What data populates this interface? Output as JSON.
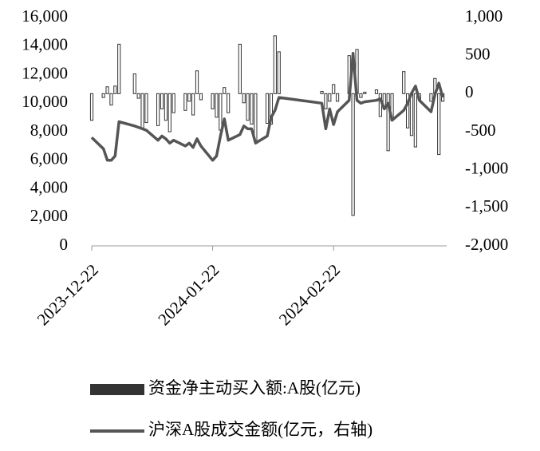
{
  "chart_data": {
    "type": "bar",
    "x": [
      "2023-12-22",
      "2023-12-25",
      "2023-12-26",
      "2023-12-27",
      "2023-12-28",
      "2023-12-29",
      "2024-01-02",
      "2024-01-03",
      "2024-01-04",
      "2024-01-05",
      "2024-01-08",
      "2024-01-09",
      "2024-01-10",
      "2024-01-11",
      "2024-01-12",
      "2024-01-15",
      "2024-01-16",
      "2024-01-17",
      "2024-01-18",
      "2024-01-19",
      "2024-01-22",
      "2024-01-23",
      "2024-01-24",
      "2024-01-25",
      "2024-01-26",
      "2024-01-29",
      "2024-01-30",
      "2024-01-31",
      "2024-02-01",
      "2024-02-02",
      "2024-02-05",
      "2024-02-06",
      "2024-02-07",
      "2024-02-08",
      "2024-02-19",
      "2024-02-20",
      "2024-02-21",
      "2024-02-22",
      "2024-02-23",
      "2024-02-26",
      "2024-02-27",
      "2024-02-28",
      "2024-02-29",
      "2024-03-01",
      "2024-03-04",
      "2024-03-05",
      "2024-03-06",
      "2024-03-07",
      "2024-03-08",
      "2024-03-11",
      "2024-03-12",
      "2024-03-13",
      "2024-03-14",
      "2024-03-15",
      "2024-03-18",
      "2024-03-19",
      "2024-03-20",
      "2024-03-21"
    ],
    "xlim": [
      "2023-12-22",
      "2024-03-22"
    ],
    "xticks": [
      "2023-12-22",
      "2024-01-22",
      "2024-02-22"
    ],
    "ylim": [
      0,
      16000
    ],
    "yticks": [
      0,
      {
        "value": 2000,
        "label": "2,000"
      },
      {
        "value": 4000,
        "label": "4,000"
      },
      {
        "value": 6000,
        "label": "6,000"
      },
      {
        "value": 8000,
        "label": "8,000"
      },
      {
        "value": 10000,
        "label": "10,000"
      },
      {
        "value": 12000,
        "label": "12,000"
      },
      {
        "value": 14000,
        "label": "14,000"
      },
      {
        "value": 16000,
        "label": "16,000"
      }
    ],
    "y2lim": [
      -2000,
      1000
    ],
    "y2ticks": [
      {
        "value": -2000,
        "label": "-2,000"
      },
      {
        "value": -1500,
        "label": "-1,500"
      },
      {
        "value": -1000,
        "label": "-1,000"
      },
      -500,
      0,
      500,
      {
        "value": 1000,
        "label": "1,000"
      }
    ],
    "series": [
      {
        "name": "资金净主动买入额:A股(亿元)",
        "type": "bar",
        "axis": "y2",
        "color": "#333333",
        "values": [
          -350,
          -50,
          90,
          -150,
          100,
          650,
          260,
          -60,
          -450,
          -380,
          -420,
          -200,
          -350,
          -500,
          -250,
          -220,
          -100,
          -280,
          300,
          -80,
          -200,
          -310,
          -480,
          80,
          -250,
          650,
          -120,
          -350,
          -400,
          -620,
          -390,
          -400,
          760,
          550,
          30,
          -200,
          -100,
          120,
          -100,
          500,
          -1600,
          580,
          -50,
          20,
          50,
          -300,
          -200,
          -750,
          -350,
          290,
          -450,
          -550,
          -700,
          -80,
          -100,
          200,
          -800,
          -100
        ]
      },
      {
        "name": "沪深A股成交金额(亿元，右轴)",
        "type": "line",
        "color": "#555555",
        "values": [
          7600,
          6800,
          6000,
          6000,
          6300,
          8700,
          8400,
          8300,
          8200,
          8100,
          7400,
          7700,
          7500,
          7200,
          7400,
          7000,
          7200,
          6900,
          7500,
          7000,
          6000,
          6300,
          7700,
          8900,
          7400,
          7800,
          8400,
          8200,
          8200,
          7200,
          7700,
          9000,
          9500,
          10400,
          10000,
          8200,
          9600,
          8500,
          9400,
          10200,
          13500,
          10200,
          10000,
          10100,
          10200,
          10300,
          9600,
          10000,
          8800,
          9500,
          10000,
          10700,
          11200,
          10200,
          9400,
          10600,
          11400,
          10400
        ]
      }
    ]
  }
}
